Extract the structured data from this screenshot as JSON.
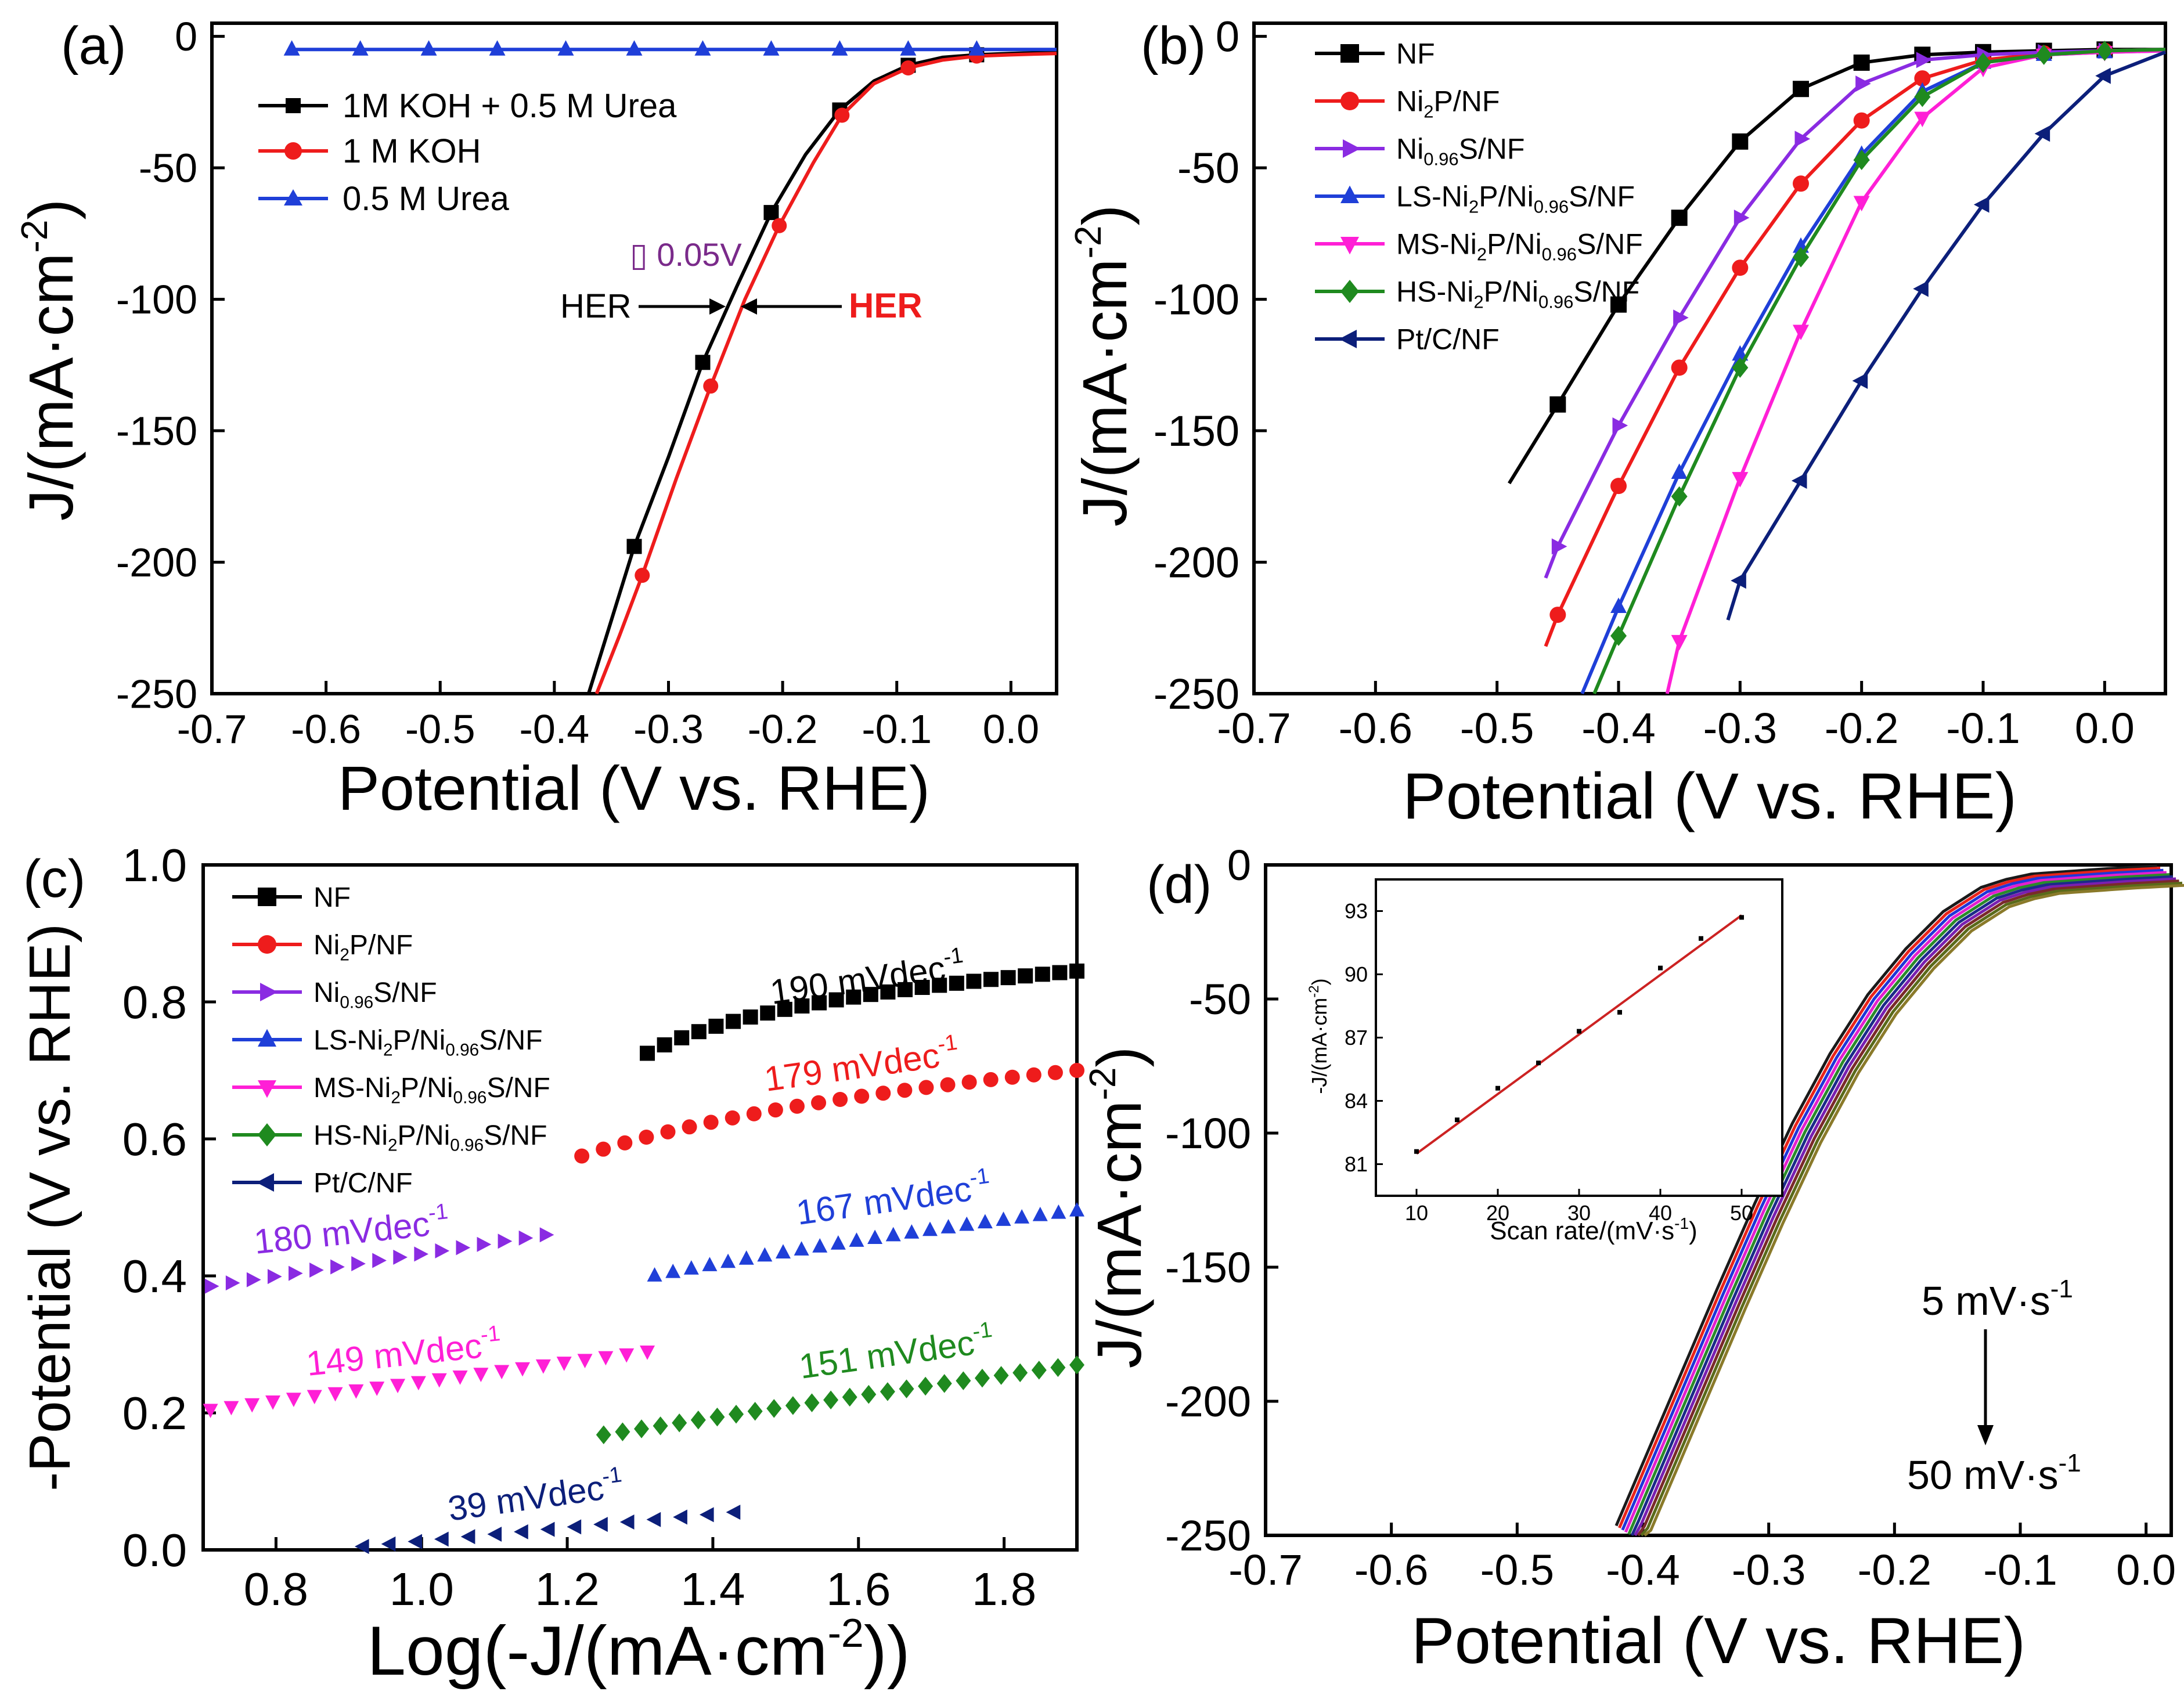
{
  "colors": {
    "black": "#000000",
    "red": "#ee1c1c",
    "blue": "#1f3fd8",
    "violet": "#8a2be2",
    "magenta": "#ff1fd6",
    "green": "#1f8a1f",
    "navy": "#0c1f7a",
    "annot_purple": "#7a2a8a",
    "inset_line": "#cc2222"
  },
  "chart_data": [
    {
      "panel": "(a)",
      "type": "line",
      "xlabel": "Potential (V vs. RHE)",
      "ylabel": "J/(mA·cm⁻²)",
      "xlim": [
        -0.7,
        0.04
      ],
      "ylim": [
        -250,
        5
      ],
      "xticks": [
        -0.7,
        -0.6,
        -0.5,
        -0.4,
        -0.3,
        -0.2,
        -0.1,
        0.0
      ],
      "xtick_labels": [
        "-0.7",
        "-0.6",
        "-0.5",
        "-0.4",
        "-0.3",
        "-0.2",
        "-0.1",
        "0.0"
      ],
      "yticks": [
        0,
        -50,
        -100,
        -150,
        -200,
        -250
      ],
      "ytick_labels": [
        "0",
        "-50",
        "-100",
        "-150",
        "-200",
        "-250"
      ],
      "legend": [
        "1M KOH + 0.5 M Urea",
        "1 M KOH",
        "0.5 M Urea"
      ],
      "series": [
        {
          "name": "1M KOH + 0.5 M Urea",
          "color": "black",
          "marker": "square",
          "x": [
            -0.37,
            -0.35,
            -0.33,
            -0.3,
            -0.27,
            -0.24,
            -0.21,
            -0.18,
            -0.15,
            -0.12,
            -0.09,
            -0.06,
            -0.03,
            0.0,
            0.04
          ],
          "y": [
            -250,
            -222,
            -194,
            -160,
            -124,
            -95,
            -67,
            -45,
            -28,
            -17,
            -11,
            -8,
            -7,
            -6.5,
            -6
          ]
        },
        {
          "name": "1 M KOH",
          "color": "red",
          "marker": "circle",
          "x": [
            -0.363,
            -0.343,
            -0.323,
            -0.293,
            -0.263,
            -0.233,
            -0.203,
            -0.173,
            -0.148,
            -0.12,
            -0.09,
            -0.06,
            -0.03,
            0.0,
            0.04
          ],
          "y": [
            -250,
            -228,
            -205,
            -168,
            -133,
            -100,
            -72,
            -48,
            -30,
            -18,
            -12,
            -9,
            -7.5,
            -7,
            -6.5
          ]
        },
        {
          "name": "0.5 M Urea",
          "color": "blue",
          "marker": "triangle-up",
          "x": [
            -0.63,
            0.04
          ],
          "y": [
            -5,
            -5
          ]
        }
      ],
      "annotations": [
        "▯ 0.05V",
        "HER",
        "HER"
      ]
    },
    {
      "panel": "(b)",
      "type": "line",
      "xlabel": "Potential (V vs. RHE)",
      "ylabel": "J/(mA·cm⁻²)",
      "xlim": [
        -0.7,
        0.05
      ],
      "ylim": [
        -250,
        5
      ],
      "xticks": [
        -0.7,
        -0.6,
        -0.5,
        -0.4,
        -0.3,
        -0.2,
        -0.1,
        0.0
      ],
      "xtick_labels": [
        "-0.7",
        "-0.6",
        "-0.5",
        "-0.4",
        "-0.3",
        "-0.2",
        "-0.1",
        "0.0"
      ],
      "yticks": [
        0,
        -50,
        -100,
        -150,
        -200,
        -250
      ],
      "ytick_labels": [
        "0",
        "-50",
        "-100",
        "-150",
        "-200",
        "-250"
      ],
      "series": [
        {
          "name": "NF",
          "color": "black",
          "marker": "square",
          "x": [
            -0.49,
            -0.45,
            -0.4,
            -0.35,
            -0.3,
            -0.25,
            -0.2,
            -0.15,
            -0.1,
            -0.05,
            0.0,
            0.05
          ],
          "y": [
            -170,
            -140,
            -102,
            -69,
            -40,
            -20,
            -10,
            -7,
            -6,
            -5.5,
            -5,
            -5
          ]
        },
        {
          "name": "Ni₂P/NF",
          "color": "red",
          "marker": "circle",
          "x": [
            -0.46,
            -0.45,
            -0.4,
            -0.35,
            -0.3,
            -0.25,
            -0.2,
            -0.15,
            -0.1,
            -0.05,
            0.0,
            0.05
          ],
          "y": [
            -232,
            -220,
            -171,
            -126,
            -88,
            -56,
            -32,
            -16,
            -9,
            -6.5,
            -5.5,
            -5
          ]
        },
        {
          "name": "Ni0.96S/NF",
          "color": "violet",
          "marker": "triangle-right",
          "x": [
            -0.46,
            -0.45,
            -0.4,
            -0.35,
            -0.3,
            -0.25,
            -0.2,
            -0.15,
            -0.1,
            -0.05,
            0.0,
            0.05
          ],
          "y": [
            -206,
            -194,
            -148,
            -107,
            -69,
            -39,
            -18,
            -9,
            -7,
            -6,
            -5.5,
            -5
          ]
        },
        {
          "name": "LS-Ni₂P/Ni0.96S/NF",
          "color": "blue",
          "marker": "triangle-up",
          "x": [
            -0.43,
            -0.4,
            -0.35,
            -0.3,
            -0.25,
            -0.2,
            -0.15,
            -0.1,
            -0.05,
            0.0,
            0.05
          ],
          "y": [
            -250,
            -217,
            -166,
            -121,
            -80,
            -45,
            -21,
            -10,
            -7,
            -6,
            -5.5
          ]
        },
        {
          "name": "MS-Ni₂P/Ni0.96S/NF",
          "color": "magenta",
          "marker": "triangle-down",
          "x": [
            -0.36,
            -0.35,
            -0.3,
            -0.25,
            -0.2,
            -0.15,
            -0.1,
            -0.05,
            0.0,
            0.05
          ],
          "y": [
            -250,
            -230,
            -168,
            -112,
            -63,
            -31,
            -12,
            -7,
            -6,
            -5.5
          ]
        },
        {
          "name": "HS-Ni₂P/Ni0.96S/NF",
          "color": "green",
          "marker": "diamond",
          "x": [
            -0.42,
            -0.4,
            -0.35,
            -0.3,
            -0.25,
            -0.2,
            -0.15,
            -0.1,
            -0.05,
            0.0,
            0.05
          ],
          "y": [
            -250,
            -228,
            -175,
            -126,
            -84,
            -47,
            -23,
            -10,
            -7,
            -5.5,
            -5
          ]
        },
        {
          "name": "Pt/C/NF",
          "color": "navy",
          "marker": "triangle-left",
          "x": [
            -0.31,
            -0.3,
            -0.25,
            -0.2,
            -0.15,
            -0.1,
            -0.05,
            0.0,
            0.05
          ],
          "y": [
            -222,
            -207,
            -169,
            -131,
            -96,
            -64,
            -37,
            -15,
            -6
          ]
        }
      ]
    },
    {
      "panel": "(c)",
      "type": "scatter",
      "xlabel": "Log(-J/(mA·cm⁻²))",
      "ylabel": "-Potential (V vs. RHE)",
      "xlim": [
        0.7,
        1.9
      ],
      "ylim": [
        0.0,
        1.0
      ],
      "xticks": [
        0.8,
        1.0,
        1.2,
        1.4,
        1.6,
        1.8
      ],
      "xtick_labels": [
        "0.8",
        "1.0",
        "1.2",
        "1.4",
        "1.6",
        "1.8"
      ],
      "yticks": [
        0.0,
        0.2,
        0.4,
        0.6,
        0.8,
        1.0
      ],
      "ytick_labels": [
        "0.0",
        "0.2",
        "0.4",
        "0.6",
        "0.8",
        "1.0"
      ],
      "series": [
        {
          "name": "NF",
          "color": "black",
          "marker": "square",
          "x_range": [
            1.31,
            1.9
          ],
          "y_range": [
            0.725,
            0.845
          ],
          "curve": 0.6,
          "n": 26
        },
        {
          "name": "Ni₂P/NF",
          "color": "red",
          "marker": "circle",
          "x_range": [
            1.22,
            1.9
          ],
          "y_range": [
            0.575,
            0.7
          ],
          "curve": 0.4,
          "n": 24
        },
        {
          "name": "Ni0.96S/NF",
          "color": "violet",
          "marker": "triangle-right",
          "x_range": [
            0.71,
            1.17
          ],
          "y_range": [
            0.385,
            0.46
          ],
          "curve": 0.0,
          "n": 17
        },
        {
          "name": "LS-Ni₂P/Ni0.96S/NF",
          "color": "blue",
          "marker": "triangle-up",
          "x_range": [
            1.32,
            1.9
          ],
          "y_range": [
            0.4,
            0.495
          ],
          "curve": 0.15,
          "n": 24
        },
        {
          "name": "MS-Ni₂P/Ni0.96S/NF",
          "color": "magenta",
          "marker": "triangle-down",
          "x_range": [
            0.71,
            1.31
          ],
          "y_range": [
            0.205,
            0.29
          ],
          "curve": 0.0,
          "n": 22
        },
        {
          "name": "HS-Ni₂P/Ni0.96S/NF",
          "color": "green",
          "marker": "diamond",
          "x_range": [
            1.25,
            1.9
          ],
          "y_range": [
            0.168,
            0.27
          ],
          "curve": 0.05,
          "n": 26
        },
        {
          "name": "Pt/C/NF",
          "color": "navy",
          "marker": "triangle-left",
          "x_range": [
            0.92,
            1.43
          ],
          "y_range": [
            0.005,
            0.055
          ],
          "curve": 0.0,
          "n": 15
        }
      ],
      "slope_labels": [
        {
          "text": "190 mVdec",
          "sup": "-1",
          "color": "black"
        },
        {
          "text": "179 mVdec",
          "sup": "-1",
          "color": "red"
        },
        {
          "text": "180 mVdec",
          "sup": "-1",
          "color": "violet"
        },
        {
          "text": "167 mVdec",
          "sup": "-1",
          "color": "blue"
        },
        {
          "text": "149 mVdec",
          "sup": "-1",
          "color": "magenta"
        },
        {
          "text": "151 mVdec",
          "sup": "-1",
          "color": "green"
        },
        {
          "text": "39 mVdec",
          "sup": "-1",
          "color": "navy"
        }
      ]
    },
    {
      "panel": "(d)",
      "type": "line",
      "xlabel": "Potential (V vs. RHE)",
      "ylabel": "J/(mA·cm⁻²)",
      "xlim": [
        -0.7,
        0.02
      ],
      "ylim": [
        -250,
        0
      ],
      "xticks": [
        -0.7,
        -0.6,
        -0.5,
        -0.4,
        -0.3,
        -0.2,
        -0.1,
        0.0
      ],
      "xtick_labels": [
        "-0.7",
        "-0.6",
        "-0.5",
        "-0.4",
        "-0.3",
        "-0.2",
        "-0.1",
        "0.0"
      ],
      "yticks": [
        0,
        -50,
        -100,
        -150,
        -200,
        -250
      ],
      "ytick_labels": [
        "0",
        "-50",
        "-100",
        "-150",
        "-200",
        "-250"
      ],
      "base_curve": {
        "x": [
          -0.41,
          -0.39,
          -0.36,
          -0.33,
          -0.3,
          -0.27,
          -0.24,
          -0.21,
          -0.18,
          -0.15,
          -0.12,
          -0.1,
          -0.08,
          -0.05,
          -0.02,
          0.0,
          0.02
        ],
        "y": [
          -250,
          -228,
          -195,
          -162,
          -130,
          -100,
          -74,
          -52,
          -35,
          -21,
          -12,
          -9,
          -7,
          -6,
          -5,
          -4.5,
          -4
        ]
      },
      "scan_rates": [
        "5",
        "10",
        "15",
        "20",
        "25",
        "30",
        "35",
        "40",
        "45",
        "50"
      ],
      "scan_colors": [
        "#1a1a1a",
        "#e8231b",
        "#2035d8",
        "#e31fcf",
        "#2a8a2a",
        "#1b2a8a",
        "#7a1fb0",
        "#7a2a2a",
        "#5a6a1a",
        "#8a7a2a"
      ],
      "arrow_labels": [
        {
          "text": "5 mV·s",
          "sup": "-1"
        },
        {
          "text": "50 mV·s",
          "sup": "-1"
        }
      ],
      "inset": {
        "type": "scatter",
        "xlabel": "Scan rate/(mV·s⁻¹)",
        "ylabel": "-J/(mA·cm⁻²)",
        "xlim": [
          5,
          55
        ],
        "ylim": [
          79.5,
          94.5
        ],
        "xticks": [
          10,
          20,
          30,
          40,
          50
        ],
        "xtick_labels": [
          "10",
          "20",
          "30",
          "40",
          "50"
        ],
        "yticks": [
          81,
          84,
          87,
          90,
          93
        ],
        "ytick_labels": [
          "81",
          "84",
          "87",
          "90",
          "93"
        ],
        "x": [
          10,
          15,
          20,
          25,
          30,
          35,
          40,
          45,
          50
        ],
        "y": [
          81.6,
          83.1,
          84.6,
          85.8,
          87.3,
          88.2,
          90.3,
          91.7,
          92.7
        ],
        "fit": {
          "x": [
            10,
            50
          ],
          "y": [
            81.5,
            92.8
          ]
        }
      }
    }
  ],
  "panels": {
    "a": {
      "label": "(a)",
      "xlabel": "Potential (V vs. RHE)",
      "ylabel_main": "J/(mA·cm",
      "ylabel_sup": "-2",
      "ylabel_tail": ")",
      "legend": [
        "1M KOH + 0.5 M Urea",
        "1 M KOH",
        "0.5 M Urea"
      ],
      "annot_delta": "▯ 0.05V",
      "annot_her_black": "HER",
      "annot_her_red": "HER"
    },
    "b": {
      "label": "(b)",
      "xlabel": "Potential (V vs. RHE)",
      "ylabel_main": "J/(mA·cm",
      "ylabel_sup": "-2",
      "ylabel_tail": ")"
    },
    "c": {
      "label": "(c)",
      "xlabel_main": "Log(-J/(mA·cm",
      "xlabel_sup": "-2",
      "xlabel_tail": "))",
      "ylabel": "-Potential (V vs. RHE)"
    },
    "d": {
      "label": "(d)",
      "xlabel": "Potential (V vs. RHE)",
      "ylabel_main": "J/(mA·cm",
      "ylabel_sup": "-2",
      "ylabel_tail": ")",
      "inset_xlabel_main": "Scan rate/(mV·s",
      "inset_xlabel_sup": "-1",
      "inset_xlabel_tail": ")",
      "inset_ylabel_main": "-J/(mA·cm",
      "inset_ylabel_sup": "-2",
      "inset_ylabel_tail": ")"
    }
  },
  "legend_bc": [
    {
      "pre": "NF",
      "sub1": "",
      "mid": "",
      "sub2": "",
      "post": ""
    },
    {
      "pre": "Ni",
      "sub1": "2",
      "mid": "P/NF",
      "sub2": "",
      "post": ""
    },
    {
      "pre": "Ni",
      "sub1": "0.96",
      "mid": "S/NF",
      "sub2": "",
      "post": ""
    },
    {
      "pre": "LS-Ni",
      "sub1": "2",
      "mid": "P/Ni",
      "sub2": "0.96",
      "post": "S/NF"
    },
    {
      "pre": "MS-Ni",
      "sub1": "2",
      "mid": "P/Ni",
      "sub2": "0.96",
      "post": "S/NF"
    },
    {
      "pre": "HS-Ni",
      "sub1": "2",
      "mid": "P/Ni",
      "sub2": "0.96",
      "post": "S/NF"
    },
    {
      "pre": "Pt/C/NF",
      "sub1": "",
      "mid": "",
      "sub2": "",
      "post": ""
    }
  ]
}
